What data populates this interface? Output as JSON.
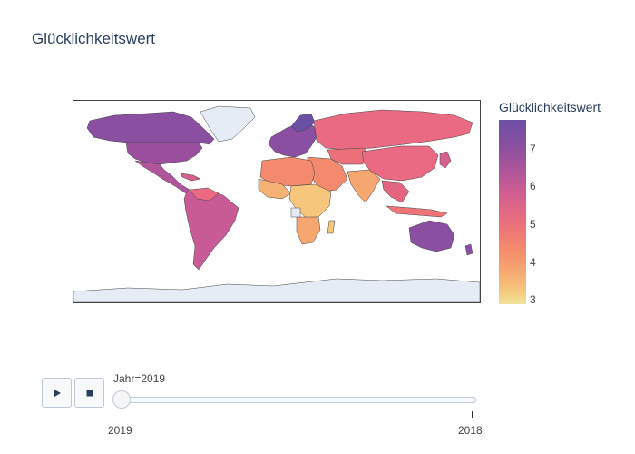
{
  "title": "Glücklichkeitswert",
  "colors": {
    "max": "#6b4fa5",
    "mid": "#e96a82",
    "min": "#f1e39a",
    "no_data": "#e5ecf6",
    "border": "#444444"
  },
  "colorbar": {
    "title": "Glücklichkeitswert",
    "min": 2.85,
    "max": 7.77,
    "ticks": [
      "7",
      "6",
      "5",
      "4",
      "3"
    ]
  },
  "map": {
    "projection": "equirectangular",
    "regions": [
      {
        "name": "North America",
        "band": "high"
      },
      {
        "name": "Greenland",
        "band": "no-data"
      },
      {
        "name": "Central America",
        "band": "mid-high"
      },
      {
        "name": "South America",
        "band": "mid-high"
      },
      {
        "name": "Europe",
        "band": "high"
      },
      {
        "name": "Russia & Central Asia",
        "band": "mid"
      },
      {
        "name": "Middle East",
        "band": "mid"
      },
      {
        "name": "South Asia",
        "band": "low"
      },
      {
        "name": "East Asia",
        "band": "mid"
      },
      {
        "name": "Southeast Asia",
        "band": "mid"
      },
      {
        "name": "Africa",
        "band": "low"
      },
      {
        "name": "Australia",
        "band": "high"
      },
      {
        "name": "Antarctica",
        "band": "no-data"
      }
    ]
  },
  "animation": {
    "play_icon": "play-icon",
    "stop_icon": "stop-icon",
    "current_label": "Jahr=2019",
    "current_value": "2019",
    "steps": [
      "2019",
      "2018"
    ]
  }
}
